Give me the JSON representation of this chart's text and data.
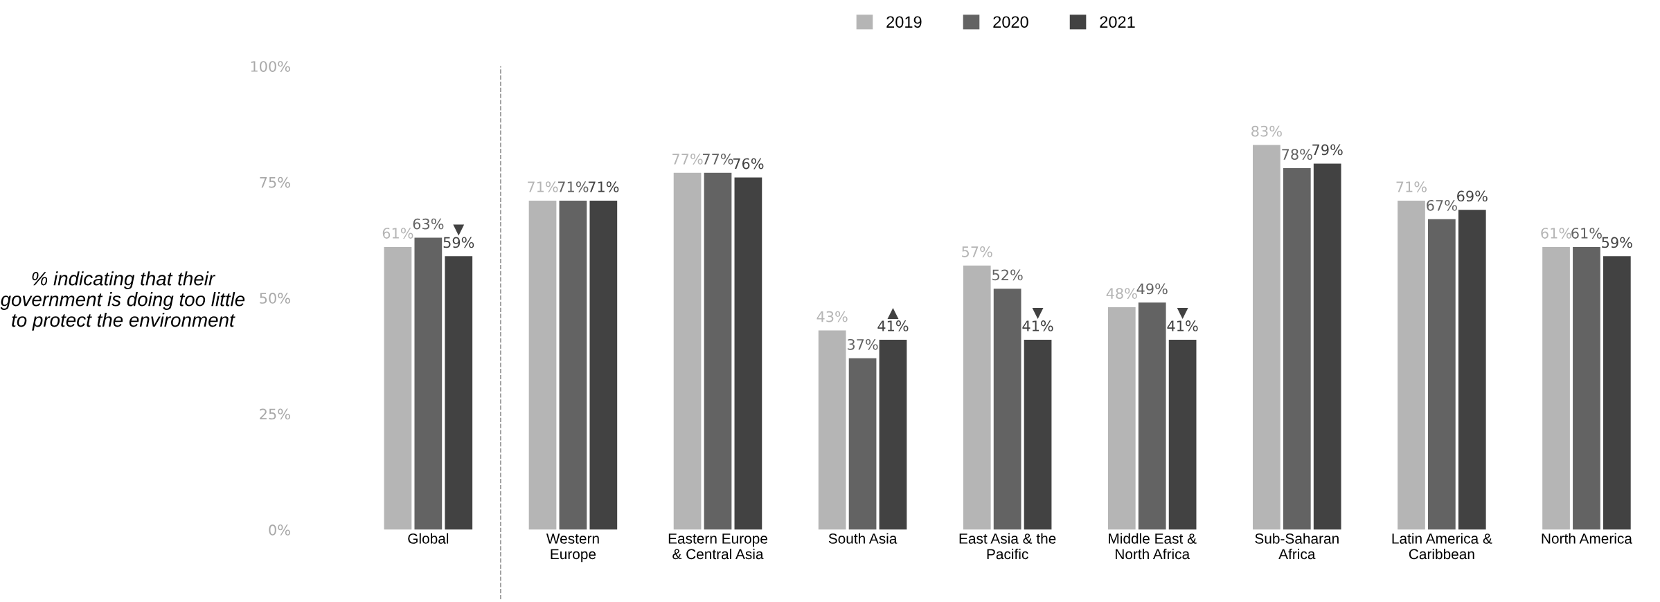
{
  "chart_data": {
    "type": "bar",
    "ylabel": "% indicating that their\ngovernment is doing too little\nto protect the environment",
    "categories": [
      "Global",
      "Western\nEurope",
      "Eastern Europe\n& Central Asia",
      "South Asia",
      "East Asia & the\nPacific",
      "Middle East &\nNorth Africa",
      "Sub-Saharan\nAfrica",
      "Latin America &\nCaribbean",
      "North America"
    ],
    "series": [
      {
        "name": "2019",
        "color": "#b5b5b5",
        "values": [
          61,
          71,
          77,
          43,
          57,
          48,
          83,
          71,
          61
        ],
        "value_labels": [
          "61%",
          "71%",
          "77%",
          "43%",
          "57%",
          "48%",
          "83%",
          "71%",
          "61%"
        ]
      },
      {
        "name": "2020",
        "color": "#636363",
        "values": [
          63,
          71,
          77,
          37,
          52,
          49,
          78,
          67,
          61
        ],
        "value_labels": [
          "63%",
          "71%",
          "77%",
          "37%",
          "52%",
          "49%",
          "78%",
          "67%",
          "61%"
        ]
      },
      {
        "name": "2021",
        "color": "#424242",
        "values": [
          59,
          71,
          76,
          41,
          41,
          41,
          79,
          69,
          59
        ],
        "value_labels": [
          "▼\n59%",
          "71%",
          "76%",
          "▲\n41%",
          "▼\n41%",
          "▼\n41%",
          "79%",
          "69%",
          "59%"
        ]
      }
    ],
    "ylim": [
      0,
      100
    ],
    "yticks": [
      {
        "value": 0,
        "label": "0%"
      },
      {
        "value": 25,
        "label": "25%"
      },
      {
        "value": 50,
        "label": "50%"
      },
      {
        "value": 75,
        "label": "75%"
      },
      {
        "value": 100,
        "label": "100%"
      }
    ],
    "legend": "top",
    "grid": false
  }
}
